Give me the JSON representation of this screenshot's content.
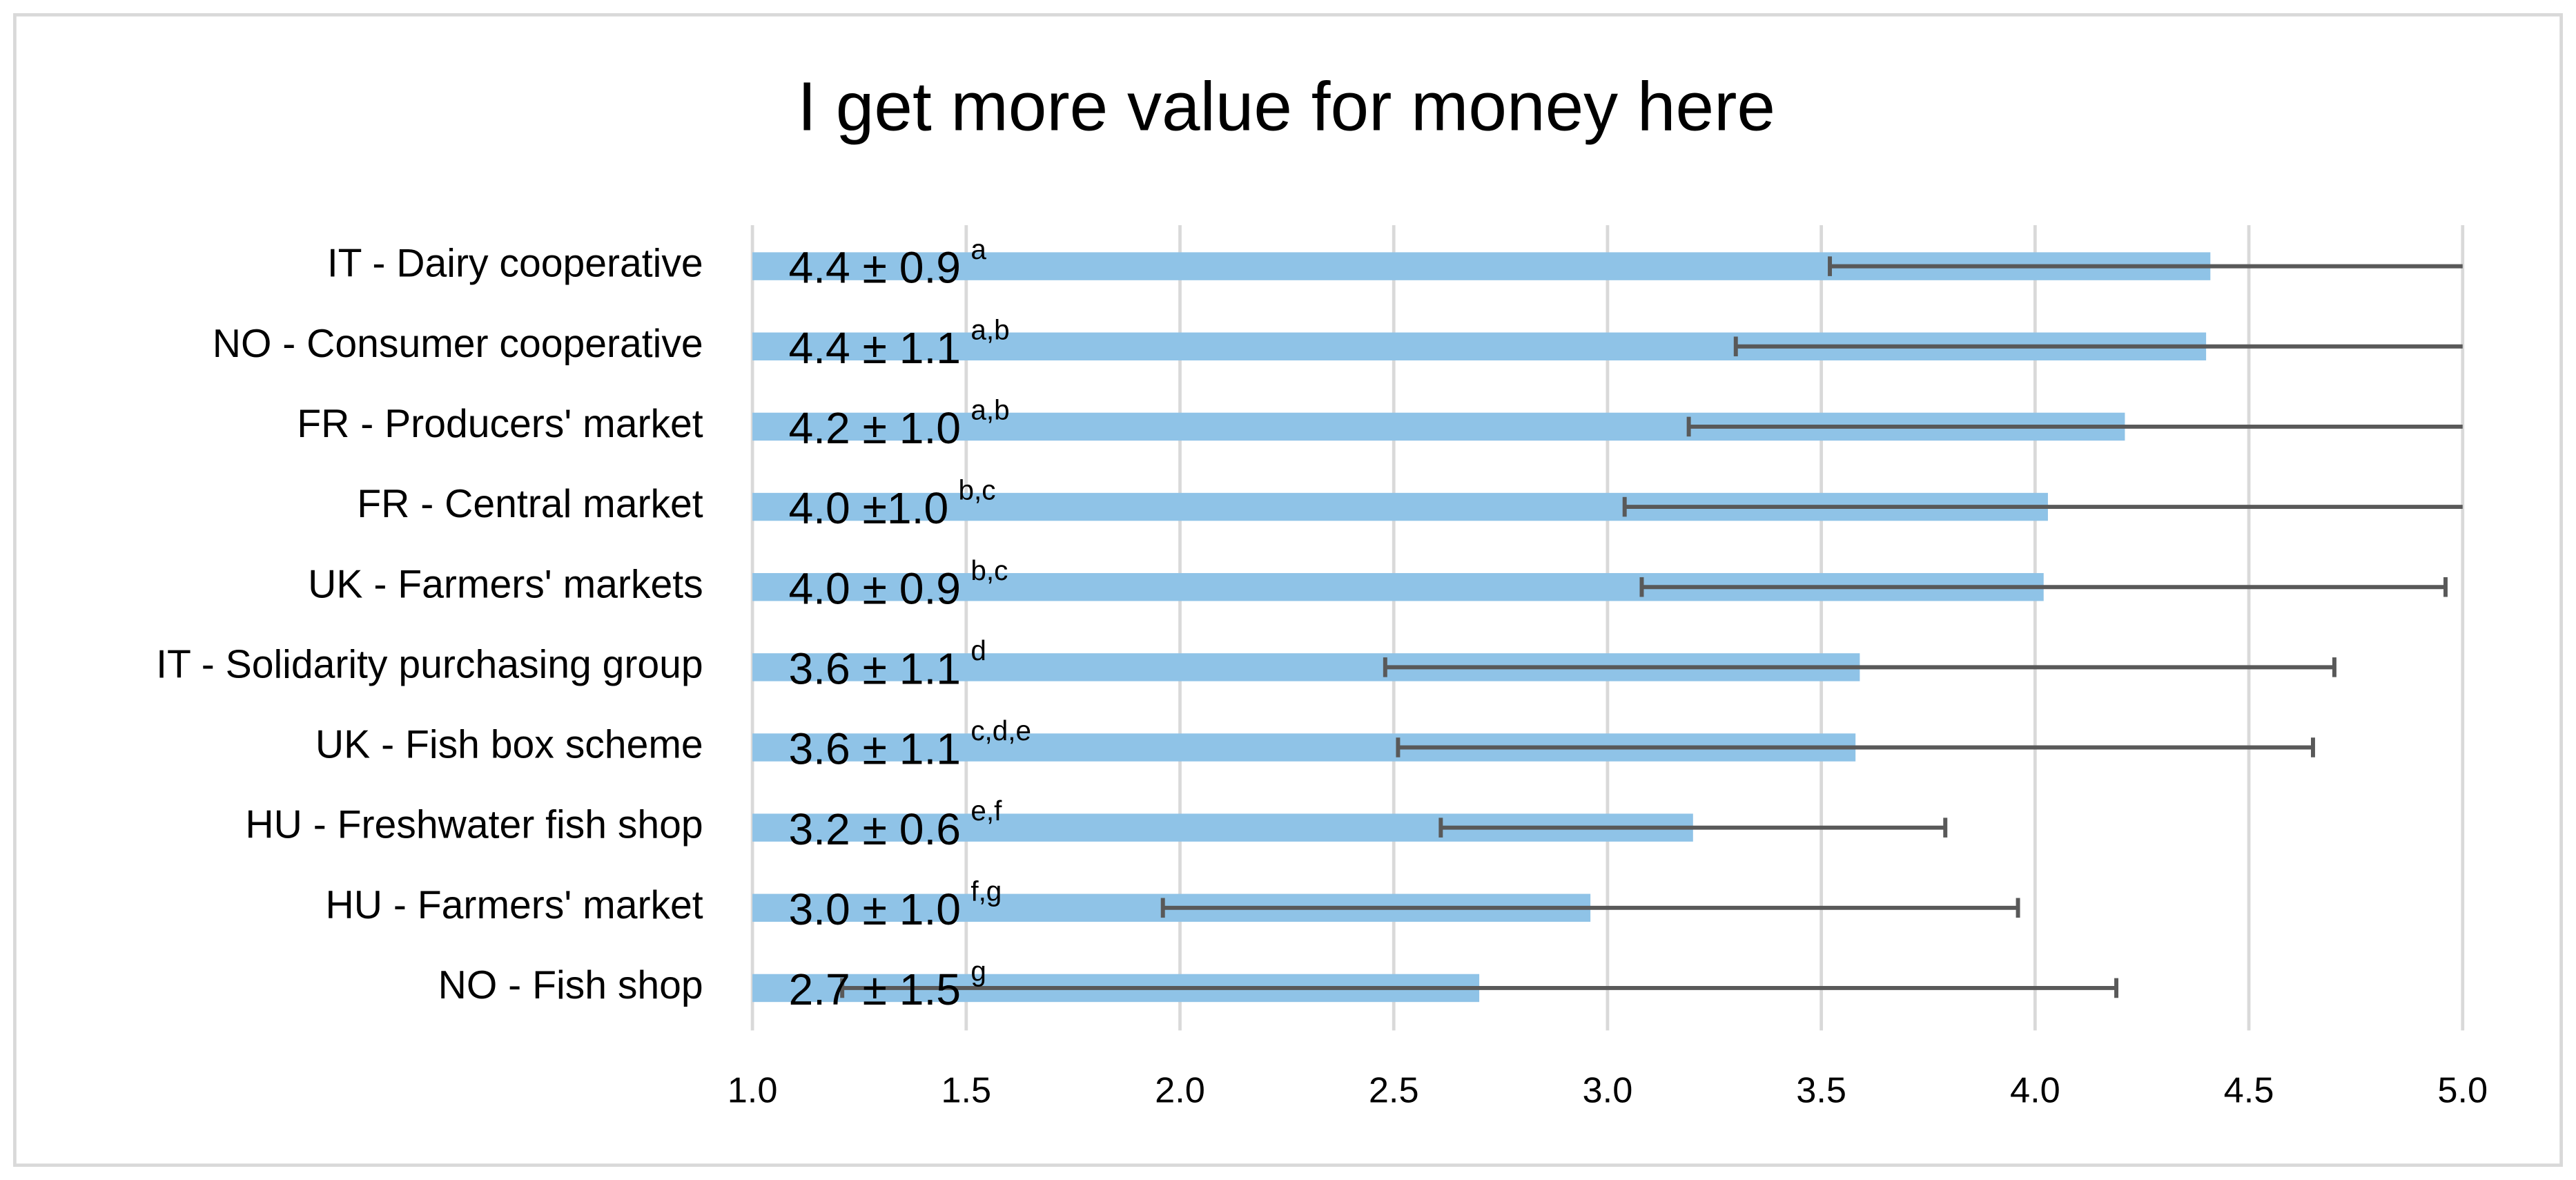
{
  "chart_data": {
    "type": "hbar-errorbar",
    "title": "I get more value for money here",
    "categories": [
      "IT - Dairy cooperative",
      "NO - Consumer cooperative",
      "FR - Producers' market",
      "FR - Central market",
      "UK - Farmers' markets",
      "IT - Solidarity purchasing group",
      "UK -  Fish box scheme",
      "HU - Freshwater fish shop",
      "HU - Farmers' market",
      "NO - Fish shop"
    ],
    "values": [
      4.41,
      4.4,
      4.21,
      4.03,
      4.02,
      3.59,
      3.58,
      3.2,
      2.96,
      2.7
    ],
    "errors": [
      0.89,
      1.1,
      1.02,
      0.99,
      0.94,
      1.11,
      1.07,
      0.59,
      1.0,
      1.49
    ],
    "value_labels": [
      "4.4 ± 0.9",
      "4.4 ± 1.1",
      "4.2 ± 1.0",
      "4.0 ±1.0",
      "4.0 ± 0.9",
      "3.6 ± 1.1",
      "3.6  ± 1.1",
      "3.2 ± 0.6",
      "3.0 ± 1.0",
      "2.7 ± 1.5"
    ],
    "significance_groups": [
      "a",
      "a,b",
      "a,b",
      "b,c",
      "b,c",
      "d",
      "c,d,e",
      "e,f",
      "f,g",
      "g"
    ],
    "color": "#8fc3e7",
    "error_color": "#595959",
    "xlim": [
      1.0,
      5.0
    ],
    "xticks": [
      {
        "value": 1.0,
        "label": "1.0"
      },
      {
        "value": 1.5,
        "label": "1.5"
      },
      {
        "value": 2.0,
        "label": "2.0"
      },
      {
        "value": 2.5,
        "label": "2.5"
      },
      {
        "value": 3.0,
        "label": "3.0"
      },
      {
        "value": 3.5,
        "label": "3.5"
      },
      {
        "value": 4.0,
        "label": "4.0"
      },
      {
        "value": 4.5,
        "label": "4.5"
      },
      {
        "value": 5.0,
        "label": "5.0"
      }
    ],
    "grid": true
  }
}
